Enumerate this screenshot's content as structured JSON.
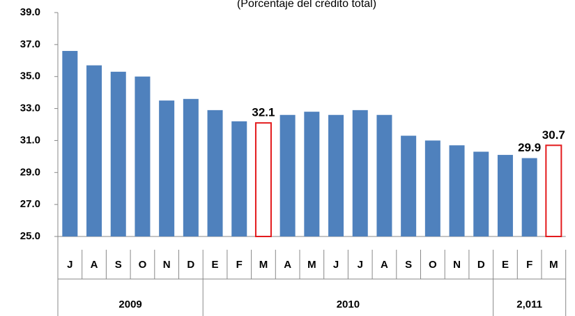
{
  "chart_data": {
    "type": "bar",
    "subtitle": "(Porcentaje del crédito total)",
    "categories": [
      "J",
      "A",
      "S",
      "O",
      "N",
      "D",
      "E",
      "F",
      "M",
      "A",
      "M",
      "J",
      "J",
      "A",
      "S",
      "O",
      "N",
      "D",
      "E",
      "F",
      "M"
    ],
    "groups": [
      {
        "label": "2009",
        "count": 6
      },
      {
        "label": "2010",
        "count": 12
      },
      {
        "label": "2,011",
        "count": 3
      }
    ],
    "values": [
      36.6,
      35.7,
      35.3,
      35.0,
      33.5,
      33.6,
      32.9,
      32.2,
      32.1,
      32.6,
      32.8,
      32.6,
      32.9,
      32.6,
      31.3,
      31.0,
      30.7,
      30.3,
      30.1,
      29.9,
      30.7
    ],
    "value_labels": [
      null,
      null,
      null,
      null,
      null,
      null,
      null,
      null,
      "32.1",
      null,
      null,
      null,
      null,
      null,
      null,
      null,
      null,
      null,
      null,
      "29.9",
      "30.7"
    ],
    "outlined": [
      false,
      false,
      false,
      false,
      false,
      false,
      false,
      false,
      true,
      false,
      false,
      false,
      false,
      false,
      false,
      false,
      false,
      false,
      false,
      false,
      true
    ],
    "color": "#4f81bd",
    "outline_color": "#e31a1c",
    "ylim": [
      25,
      39
    ],
    "yticks": [
      {
        "value": 25,
        "label": "25.0"
      },
      {
        "value": 27,
        "label": "27.0"
      },
      {
        "value": 29,
        "label": "29.0"
      },
      {
        "value": 31,
        "label": "31.0"
      },
      {
        "value": 33,
        "label": "33.0"
      },
      {
        "value": 35,
        "label": "35.0"
      },
      {
        "value": 37,
        "label": "37.0"
      },
      {
        "value": 39,
        "label": "39.0"
      }
    ],
    "grid": false
  }
}
